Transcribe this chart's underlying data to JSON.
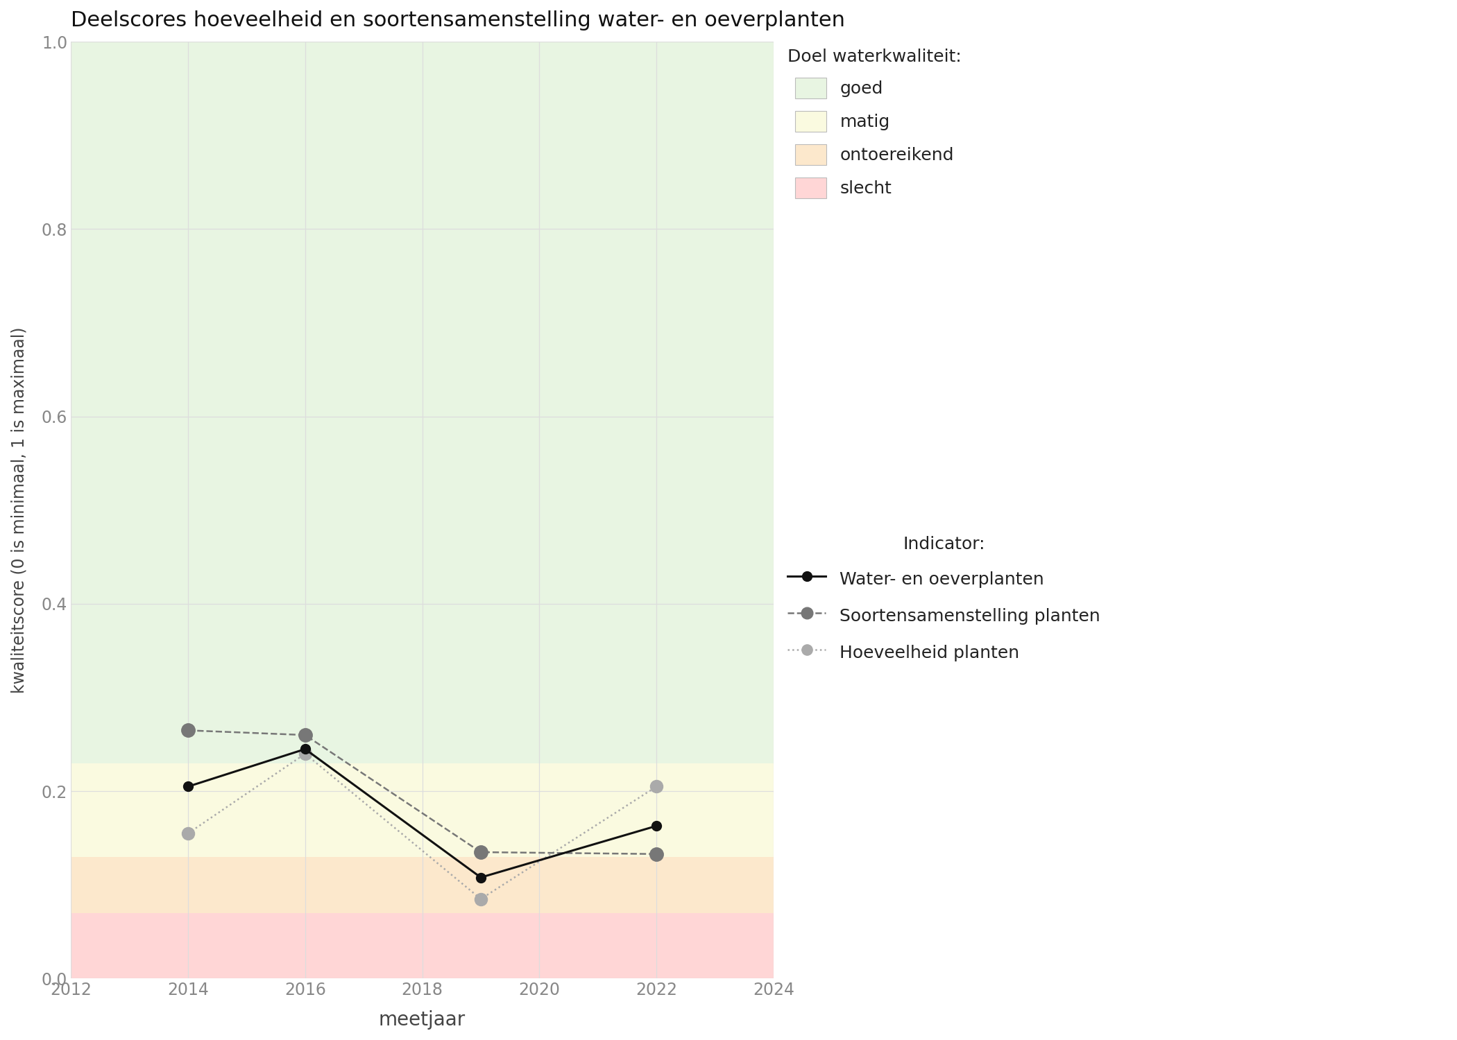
{
  "title": "Deelscores hoeveelheid en soortensamenstelling water- en oeverplanten",
  "xlabel": "meetjaar",
  "ylabel": "kwaliteitscore (0 is minimaal, 1 is maximaal)",
  "xlim": [
    2012,
    2024
  ],
  "ylim": [
    0.0,
    1.0
  ],
  "xticks": [
    2012,
    2014,
    2016,
    2018,
    2020,
    2022,
    2024
  ],
  "yticks": [
    0.0,
    0.2,
    0.4,
    0.6,
    0.8,
    1.0
  ],
  "bg_color": "#ffffff",
  "plot_bg": "#ffffff",
  "quality_bands": [
    {
      "label": "goed",
      "ymin": 0.23,
      "ymax": 1.0,
      "color": "#e8f5e2"
    },
    {
      "label": "matig",
      "ymin": 0.13,
      "ymax": 0.23,
      "color": "#fafae0"
    },
    {
      "label": "ontoereikend",
      "ymin": 0.07,
      "ymax": 0.13,
      "color": "#fce8cc"
    },
    {
      "label": "slecht",
      "ymin": 0.0,
      "ymax": 0.07,
      "color": "#ffd6d6"
    }
  ],
  "series": {
    "water_en_oeverplanten": {
      "label": "Water- en oeverplanten",
      "x": [
        2014,
        2016,
        2019,
        2022
      ],
      "y": [
        0.205,
        0.245,
        0.108,
        0.163
      ],
      "color": "#111111",
      "linestyle": "-",
      "linewidth": 2.2,
      "markersize": 10,
      "marker": "o",
      "zorder": 5
    },
    "soortensamenstelling": {
      "label": "Soortensamenstelling planten",
      "x": [
        2014,
        2016,
        2019,
        2022
      ],
      "y": [
        0.265,
        0.26,
        0.135,
        0.133
      ],
      "color": "#777777",
      "linestyle": "--",
      "linewidth": 1.8,
      "markersize": 14,
      "marker": "o",
      "zorder": 4
    },
    "hoeveelheid": {
      "label": "Hoeveelheid planten",
      "x": [
        2014,
        2016,
        2019,
        2022
      ],
      "y": [
        0.155,
        0.24,
        0.085,
        0.205
      ],
      "color": "#aaaaaa",
      "linestyle": ":",
      "linewidth": 1.8,
      "markersize": 13,
      "marker": "o",
      "zorder": 3
    }
  },
  "legend_quality_title": "Doel waterkwaliteit:",
  "legend_indicator_title": "Indicator:",
  "legend_quality_colors": [
    "#e8f5e2",
    "#fafae0",
    "#fce8cc",
    "#ffd6d6"
  ],
  "legend_quality_labels": [
    "goed",
    "matig",
    "ontoereikend",
    "slecht"
  ]
}
